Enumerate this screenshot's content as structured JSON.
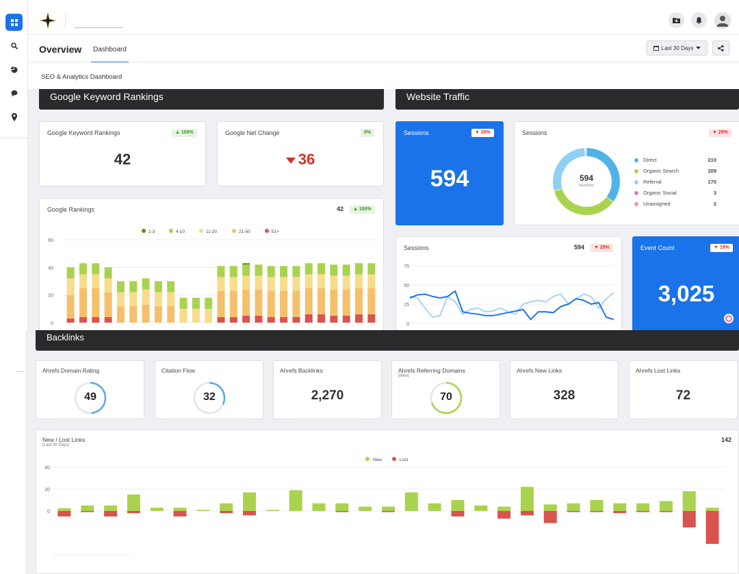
{
  "header": {
    "overview_title": "Overview",
    "dashboard_tab": "Dashboard",
    "date_range": "Last 30 Days",
    "section_tab": "SEO & Analytics Dashboard"
  },
  "rankings": {
    "section_title": "Google Keyword Rankings",
    "kw_card": {
      "label": "Google Keyword Rankings",
      "badge": "100%",
      "value": "42"
    },
    "net_card": {
      "label": "Google Net Change",
      "badge": "0%",
      "value": "36"
    },
    "chart_card": {
      "label": "Google Rankings",
      "total": "42",
      "badge": "100%"
    }
  },
  "traffic": {
    "section_title": "Website Traffic",
    "sessions_blue": {
      "label": "Sessions",
      "badge": "29%",
      "value": "594"
    },
    "sessions_donut": {
      "label": "Sessions",
      "badge": "29%",
      "center_value": "594",
      "center_label": "Sessions",
      "legend": [
        {
          "name": "Direct",
          "value": "210",
          "color": "#4fb3e8"
        },
        {
          "name": "Organic Search",
          "value": "209",
          "color": "#a9d34f"
        },
        {
          "name": "Referral",
          "value": "170",
          "color": "#8fd0f5"
        },
        {
          "name": "Organic Social",
          "value": "3",
          "color": "#e27ab8"
        },
        {
          "name": "Unassigned",
          "value": "2",
          "color": "#f093c6"
        }
      ]
    },
    "sessions_line": {
      "label": "Sessions",
      "total": "594",
      "badge": "29%"
    },
    "event_count": {
      "label": "Event Count",
      "badge": "19%",
      "value": "3,025"
    }
  },
  "backlinks": {
    "section_title": "Backlinks",
    "cards": [
      {
        "label": "Ahrefs Domain Rating",
        "sublabel": "",
        "value": "49",
        "ring": true,
        "pct": 0.49,
        "color": "#5aa9e6"
      },
      {
        "label": "Citation Flow",
        "sublabel": "",
        "value": "32",
        "ring": true,
        "pct": 0.32,
        "color": "#5aa9e6"
      },
      {
        "label": "Ahrefs Backlinks",
        "sublabel": "",
        "value": "2,270",
        "ring": false
      },
      {
        "label": "Ahrefs Referring Domains",
        "sublabel": "(New)",
        "value": "70",
        "ring": true,
        "pct": 0.7,
        "color": "#a9d34f"
      },
      {
        "label": "Ahrefs New Links",
        "sublabel": "",
        "value": "328",
        "ring": false
      },
      {
        "label": "Ahrefs Lost Links",
        "sublabel": "",
        "value": "72",
        "ring": false
      }
    ],
    "links_chart": {
      "label": "New / Lost Links",
      "sublabel": "(Last 30 Days)",
      "total": "142"
    }
  },
  "chart_data": [
    {
      "type": "bar",
      "stacked": true,
      "series": [
        {
          "name": "1-3",
          "color": "#5b8c1e",
          "values": [
            0,
            0,
            0,
            0,
            0,
            0,
            0,
            0,
            0,
            0,
            0,
            0,
            0,
            0,
            1,
            0,
            0,
            0,
            0,
            0,
            0,
            0,
            0,
            0,
            0
          ]
        },
        {
          "name": "4-10",
          "color": "#a9d34f",
          "values": [
            8,
            8,
            8,
            8,
            8,
            8,
            8,
            8,
            8,
            8,
            8,
            8,
            8,
            8,
            8,
            8,
            8,
            8,
            8,
            8,
            8,
            8,
            8,
            8,
            8
          ]
        },
        {
          "name": "11-20",
          "color": "#f7dc8c",
          "values": [
            12,
            10,
            10,
            10,
            10,
            10,
            11,
            10,
            10,
            10,
            10,
            10,
            10,
            10,
            10,
            10,
            10,
            10,
            10,
            10,
            10,
            10,
            10,
            10,
            10
          ]
        },
        {
          "name": "21-50",
          "color": "#f5c06b",
          "values": [
            17,
            21,
            21,
            18,
            12,
            12,
            13,
            12,
            12,
            0,
            0,
            0,
            19,
            19,
            19,
            19,
            19,
            19,
            19,
            19,
            19,
            19,
            19,
            19,
            19
          ]
        },
        {
          "name": "51+",
          "color": "#d9534f",
          "values": [
            3,
            4,
            4,
            4,
            0,
            0,
            0,
            0,
            0,
            0,
            0,
            0,
            4,
            4,
            5,
            5,
            4,
            4,
            4,
            6,
            6,
            5,
            5,
            6,
            6
          ]
        }
      ],
      "ylim": [
        0,
        60
      ],
      "yticks": [
        0,
        20,
        40,
        60
      ],
      "legend": "top"
    },
    {
      "type": "line",
      "series": [
        {
          "name": "current",
          "color": "#1a73e8",
          "values": [
            33,
            37,
            38,
            35,
            33,
            35,
            42,
            15,
            13,
            12,
            10,
            10,
            12,
            14,
            16,
            18,
            5,
            15,
            15,
            14,
            22,
            25,
            32,
            30,
            25,
            27,
            8,
            5
          ]
        },
        {
          "name": "previous",
          "color": "#a8d4f5",
          "values": [
            35,
            33,
            20,
            8,
            10,
            35,
            28,
            12,
            18,
            20,
            15,
            16,
            20,
            15,
            12,
            25,
            28,
            30,
            28,
            35,
            38,
            25,
            32,
            38,
            35,
            20,
            32,
            40
          ]
        }
      ],
      "ylim": [
        0,
        75
      ],
      "yticks": [
        0,
        25,
        50,
        75
      ]
    },
    {
      "type": "bar",
      "series": [
        {
          "name": "New",
          "color": "#a9d34f",
          "values": [
            2.5,
            5,
            5,
            15,
            3,
            3,
            1,
            7,
            17,
            1,
            19,
            7,
            7,
            4,
            4,
            17,
            7,
            10,
            5,
            4,
            22,
            6,
            7,
            10,
            7,
            7,
            9,
            18,
            3
          ]
        },
        {
          "name": "Lost",
          "color": "#d9534f",
          "values": [
            -5,
            -1,
            -5,
            -2,
            0,
            -5,
            0,
            -2,
            -4,
            0,
            0,
            0,
            -1,
            0,
            -1,
            0,
            0,
            -5,
            0,
            -7,
            -4,
            -11,
            -1,
            -1,
            -2,
            -1,
            -1,
            -15,
            -30
          ]
        }
      ],
      "ylim": [
        -30,
        40
      ],
      "yticks": [
        0,
        20,
        40
      ],
      "legend": "top"
    }
  ]
}
